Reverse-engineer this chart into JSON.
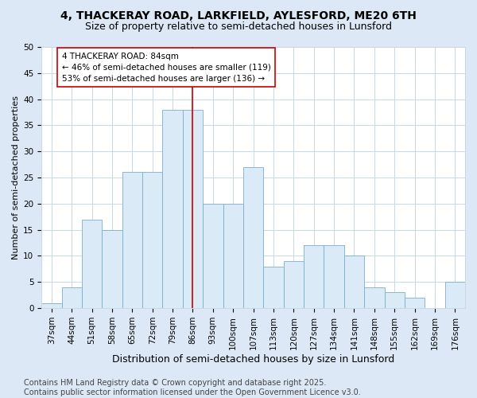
{
  "title": "4, THACKERAY ROAD, LARKFIELD, AYLESFORD, ME20 6TH",
  "subtitle": "Size of property relative to semi-detached houses in Lunsford",
  "xlabel": "Distribution of semi-detached houses by size in Lunsford",
  "ylabel": "Number of semi-detached properties",
  "bins": [
    "37sqm",
    "44sqm",
    "51sqm",
    "58sqm",
    "65sqm",
    "72sqm",
    "79sqm",
    "86sqm",
    "93sqm",
    "100sqm",
    "107sqm",
    "113sqm",
    "120sqm",
    "127sqm",
    "134sqm",
    "141sqm",
    "148sqm",
    "155sqm",
    "162sqm",
    "169sqm",
    "176sqm"
  ],
  "values": [
    1,
    4,
    17,
    15,
    26,
    26,
    38,
    38,
    20,
    20,
    27,
    8,
    9,
    12,
    12,
    10,
    4,
    3,
    2,
    0,
    5
  ],
  "bar_color": "#daeaf6",
  "bar_edge_color": "#7aaecf",
  "vline_color": "#cc0000",
  "vline_x_index": 7.5,
  "annotation_text": "4 THACKERAY ROAD: 84sqm\n← 46% of semi-detached houses are smaller (119)\n53% of semi-detached houses are larger (136) →",
  "annotation_box_color": "white",
  "annotation_box_edge_color": "#cc0000",
  "footer_text": "Contains HM Land Registry data © Crown copyright and database right 2025.\nContains public sector information licensed under the Open Government Licence v3.0.",
  "ylim": [
    0,
    50
  ],
  "yticks": [
    0,
    5,
    10,
    15,
    20,
    25,
    30,
    35,
    40,
    45,
    50
  ],
  "fig_background_color": "#dce8f5",
  "plot_background_color": "#ffffff",
  "grid_color": "#c8d8e8",
  "title_fontsize": 10,
  "subtitle_fontsize": 9,
  "xlabel_fontsize": 9,
  "ylabel_fontsize": 8,
  "tick_fontsize": 7.5,
  "annotation_fontsize": 7.5,
  "footer_fontsize": 7
}
